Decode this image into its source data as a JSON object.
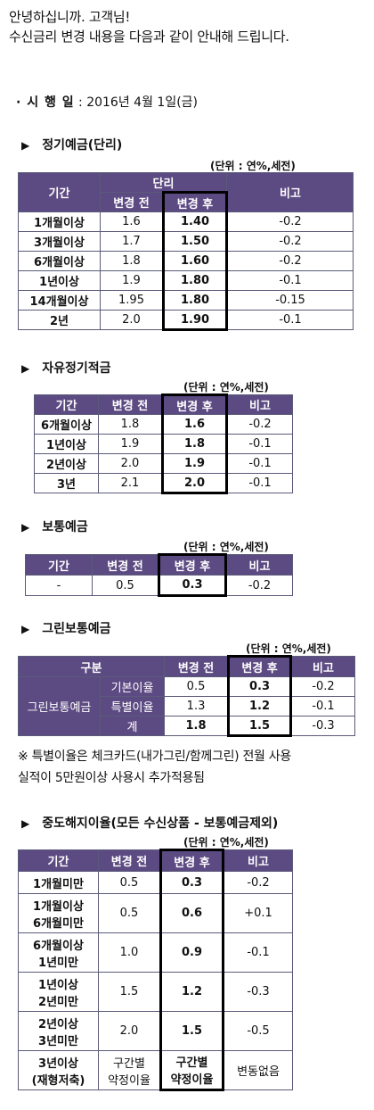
{
  "intro": {
    "line1": "안녕하십니까. 고객님!",
    "line2": "수신금리 변경 내용을 다음과 같이 안내해 드립니다."
  },
  "effective": {
    "label": "· 시 행 일",
    "value": " : 2016년 4월 1일(금)"
  },
  "unit_label": "(단위 : 연%,세전)",
  "section_marker": "▶",
  "section1": {
    "title": "정기예금(단리)",
    "head": {
      "period": "기간",
      "group": "단리",
      "before": "변경 전",
      "after": "변경 후",
      "note": "비고"
    },
    "rows": [
      [
        "1개월이상",
        "1.6",
        "1.40",
        "-0.2"
      ],
      [
        "3개월이상",
        "1.7",
        "1.50",
        "-0.2"
      ],
      [
        "6개월이상",
        "1.8",
        "1.60",
        "-0.2"
      ],
      [
        "1년이상",
        "1.9",
        "1.80",
        "-0.1"
      ],
      [
        "14개월이상",
        "1.95",
        "1.80",
        "-0.15"
      ],
      [
        "2년",
        "2.0",
        "1.90",
        "-0.1"
      ]
    ]
  },
  "section2": {
    "title": "자유정기적금",
    "head": {
      "period": "기간",
      "before": "변경 전",
      "after": "변경 후",
      "note": "비고"
    },
    "rows": [
      [
        "6개월이상",
        "1.8",
        "1.6",
        "-0.2"
      ],
      [
        "1년이상",
        "1.9",
        "1.8",
        "-0.1"
      ],
      [
        "2년이상",
        "2.0",
        "1.9",
        "-0.1"
      ],
      [
        "3년",
        "2.1",
        "2.0",
        "-0.1"
      ]
    ]
  },
  "section3": {
    "title": "보통예금",
    "head": {
      "period": "기간",
      "before": "변경 전",
      "after": "변경 후",
      "note": "비고"
    },
    "rows": [
      [
        "-",
        "0.5",
        "0.3",
        "-0.2"
      ]
    ]
  },
  "section4": {
    "title": "그린보통예금",
    "head": {
      "category": "구분",
      "before": "변경 전",
      "after": "변경 후",
      "note": "비고"
    },
    "product": "그린보통예금",
    "rows": [
      [
        "기본이율",
        "0.5",
        "0.3",
        "-0.2"
      ],
      [
        "특별이율",
        "1.3",
        "1.2",
        "-0.1"
      ],
      [
        "계",
        "1.8",
        "1.5",
        "-0.3"
      ]
    ],
    "note_line1": "※ 특별이율은 체크카드(내가그린/함께그린) 전월 사용",
    "note_line2": "실적이 5만원이상 사용시 추가적용됨"
  },
  "section5": {
    "title": "중도해지이율(모든 수신상품 - 보통예금제외)",
    "head": {
      "period": "기간",
      "before": "변경 전",
      "after": "변경 후",
      "note": "비고"
    },
    "rows": [
      {
        "p1": "1개월미만",
        "p2": "",
        "before": "0.5",
        "after": "0.3",
        "note": "-0.2"
      },
      {
        "p1": "1개월이상",
        "p2": "6개월미만",
        "before": "0.5",
        "after": "0.6",
        "note": "+0.1"
      },
      {
        "p1": "6개월이상",
        "p2": "1년미만",
        "before": "1.0",
        "after": "0.9",
        "note": "-0.1"
      },
      {
        "p1": "1년이상",
        "p2": "2년미만",
        "before": "1.5",
        "after": "1.2",
        "note": "-0.3"
      },
      {
        "p1": "2년이상",
        "p2": "3년미만",
        "before": "2.0",
        "after": "1.5",
        "note": "-0.5"
      },
      {
        "p1": "3년이상",
        "p2": "(재형저축)",
        "before": "구간별",
        "before2": "약정이율",
        "after": "구간별",
        "after2": "약정이율",
        "note": "변동없음"
      }
    ]
  }
}
